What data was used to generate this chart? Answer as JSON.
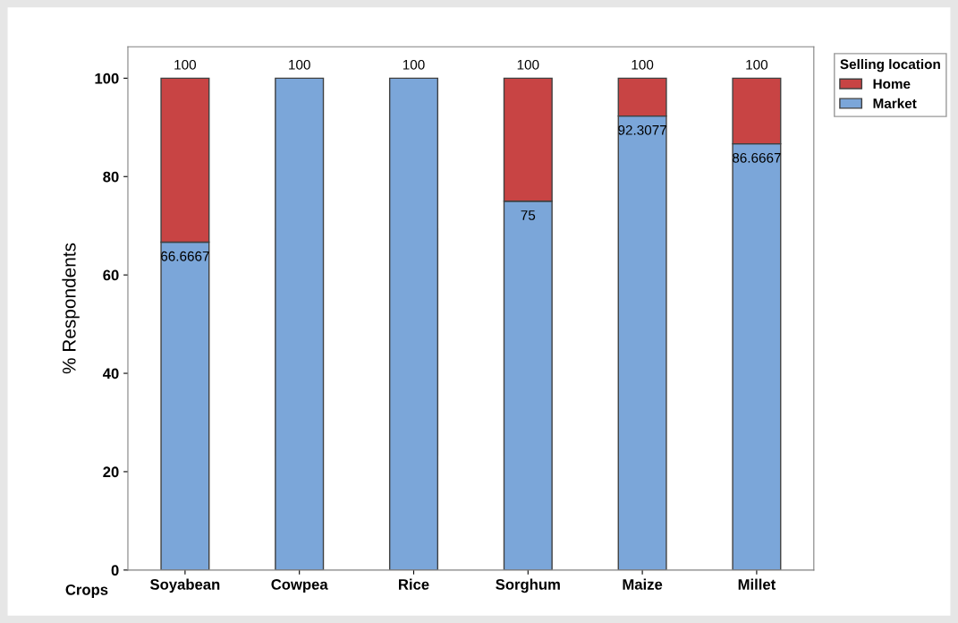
{
  "chart_data": {
    "type": "bar",
    "stacked": true,
    "xlabel": "Crops",
    "ylabel": "% Respondents",
    "legend_title": "Selling location",
    "legend": "top right",
    "categories": [
      "Soyabean",
      "Cowpea",
      "Rice",
      "Sorghum",
      "Maize",
      "Millet"
    ],
    "series": [
      {
        "name": "Market",
        "color": "#7ba6d9",
        "values": [
          66.6667,
          100,
          100,
          75,
          92.3077,
          86.6667
        ],
        "value_labels": [
          "66.6667",
          null,
          null,
          "75",
          "92.3077",
          "86.6667"
        ]
      },
      {
        "name": "Home",
        "color": "#c84444",
        "values": [
          33.3333,
          0,
          0,
          25,
          7.6923,
          13.3333
        ]
      }
    ],
    "totals": [
      "100",
      "100",
      "100",
      "100",
      "100",
      "100"
    ],
    "ylim": [
      0,
      106.4
    ],
    "yticks": [
      0,
      20,
      40,
      60,
      80,
      100
    ],
    "grid": false
  }
}
